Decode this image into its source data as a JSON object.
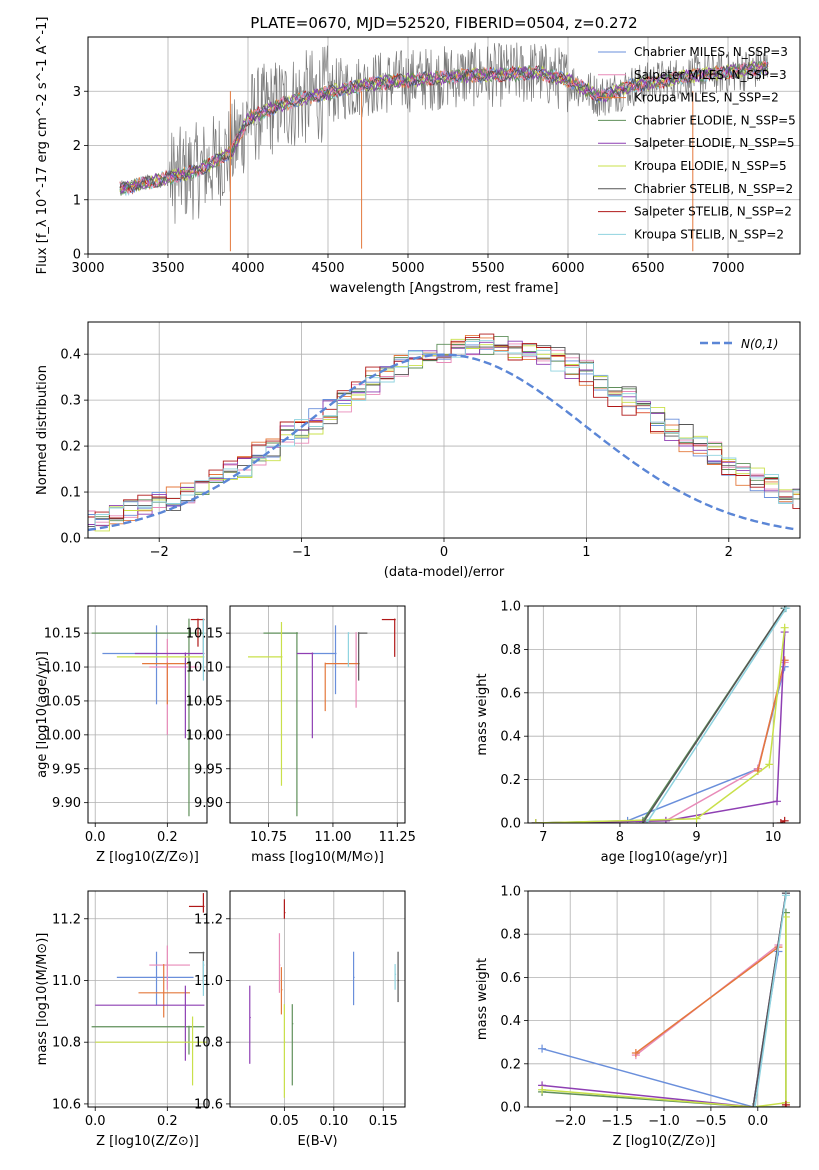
{
  "colors": {
    "series": [
      "#6a8fdb",
      "#e88ab8",
      "#e4783c",
      "#5f8f5a",
      "#8e3fb3",
      "#c9e04a",
      "#555555",
      "#b01818",
      "#8fd3df"
    ],
    "normal": "#5b86d6",
    "grid": "#b0b0b0"
  },
  "legend_entries": [
    "Chabrier MILES, N_SSP=3",
    "Salpeter MILES, N_SSP=3",
    "Kroupa MILES, N_SSP=2",
    "Chabrier ELODIE, N_SSP=5",
    "Salpeter ELODIE, N_SSP=5",
    "Kroupa ELODIE, N_SSP=5",
    "Chabrier STELIB, N_SSP=2",
    "Salpeter STELIB, N_SSP=2",
    "Kroupa STELIB, N_SSP=2"
  ],
  "chart_data": [
    {
      "id": "spectrum",
      "type": "line",
      "title": "PLATE=0670, MJD=52520, FIBERID=0504, z=0.272",
      "xlabel": "wavelength [Angstrom, rest frame]",
      "ylabel": "Flux [f_λ 10^-17 erg cm^-2 s^-1 A^-1]",
      "xlim": [
        3000,
        7450
      ],
      "ylim": [
        0,
        4
      ],
      "xticks": [
        3000,
        3500,
        4000,
        4500,
        5000,
        5500,
        6000,
        6500,
        7000
      ],
      "yticks": [
        0,
        1,
        2,
        3
      ],
      "legend": "top-right",
      "continuum": {
        "x": [
          3200,
          3500,
          3700,
          3900,
          4000,
          4200,
          4400,
          4600,
          4800,
          5000,
          5200,
          5400,
          5600,
          5800,
          6000,
          6200,
          6400,
          6600,
          6800,
          7000,
          7250
        ],
        "y": [
          1.2,
          1.4,
          1.55,
          1.9,
          2.5,
          2.75,
          2.9,
          3.05,
          3.15,
          3.2,
          3.25,
          3.3,
          3.3,
          3.35,
          3.2,
          2.9,
          3.1,
          3.2,
          3.3,
          3.35,
          3.45
        ]
      }
    },
    {
      "id": "residuals",
      "type": "histogram",
      "xlabel": "(data-model)/error",
      "ylabel": "Normed distribution",
      "xlim": [
        -2.5,
        2.5
      ],
      "ylim": [
        0,
        0.47
      ],
      "xticks": [
        -2,
        -1,
        0,
        1,
        2
      ],
      "yticks": [
        0.0,
        0.1,
        0.2,
        0.3,
        0.4
      ],
      "legend": "top-right",
      "normal_label": "N(0,1)",
      "bin_width": 0.1,
      "hist_center": 0.3,
      "hist_sigma": 1.2,
      "hist_peak": 0.41
    },
    {
      "id": "age-vs-Z",
      "type": "errorbar",
      "xlabel": "Z [log10(Z/Z⊙)]",
      "ylabel": "age [log10(age/yr)]",
      "xlim": [
        -0.02,
        0.31
      ],
      "ylim": [
        9.87,
        10.19
      ],
      "xticks": [
        0.0,
        0.2
      ],
      "yticks": [
        9.9,
        9.95,
        10.0,
        10.05,
        10.1,
        10.15
      ],
      "points": [
        {
          "x": 0.17,
          "y": 10.12,
          "xe": [
            0.15,
            0.0
          ],
          "ye": [
            0.075,
            0.04
          ]
        },
        {
          "x": 0.2,
          "y": 10.1,
          "xe": [
            0.05,
            0.08
          ],
          "ye": [
            0.1,
            0.04
          ]
        },
        {
          "x": 0.2,
          "y": 10.105,
          "xe": [
            0.07,
            0.06
          ],
          "ye": [
            0.06,
            0.0
          ]
        },
        {
          "x": 0.26,
          "y": 10.15,
          "xe": [
            0.27,
            0.04
          ],
          "ye": [
            0.27,
            0.02
          ]
        },
        {
          "x": 0.25,
          "y": 10.12,
          "xe": [
            0.14,
            0.05
          ],
          "ye": [
            0.125,
            0.0
          ]
        },
        {
          "x": 0.26,
          "y": 10.115,
          "xe": [
            0.2,
            0.04
          ],
          "ye": [
            0.0,
            0.0
          ]
        },
        {
          "x": 0.3,
          "y": 10.17,
          "xe": [
            0.0,
            0.0
          ],
          "ye": [
            0.05,
            0.0
          ]
        },
        {
          "x": 0.285,
          "y": 10.17,
          "xe": [
            0.02,
            0.015
          ],
          "ye": [
            0.04,
            0.0
          ]
        },
        {
          "x": 0.3,
          "y": 10.15,
          "xe": [
            0.0,
            0.0
          ],
          "ye": [
            0.07,
            0.02
          ]
        }
      ]
    },
    {
      "id": "age-vs-mass",
      "type": "errorbar",
      "xlabel": "mass [log10(M/M⊙)]",
      "ylabel": "",
      "xlim": [
        10.6,
        11.28
      ],
      "ylim": [
        9.87,
        10.19
      ],
      "xticks": [
        10.75,
        11.0,
        11.25
      ],
      "yticks": [
        9.9,
        9.95,
        10.0,
        10.05,
        10.1,
        10.15
      ],
      "points": [
        {
          "x": 11.01,
          "y": 10.12,
          "xe": [
            0.09,
            0.0
          ],
          "ye": [
            0.06,
            0.04
          ]
        },
        {
          "x": 11.09,
          "y": 10.1,
          "xe": [
            0.0,
            0.0
          ],
          "ye": [
            0.06,
            0.05
          ]
        },
        {
          "x": 10.97,
          "y": 10.105,
          "xe": [
            0.0,
            0.13
          ],
          "ye": [
            0.07,
            0.0
          ]
        },
        {
          "x": 10.86,
          "y": 10.15,
          "xe": [
            0.13,
            0.0
          ],
          "ye": [
            0.27,
            0.0
          ]
        },
        {
          "x": 10.92,
          "y": 10.12,
          "xe": [
            0.06,
            0.0
          ],
          "ye": [
            0.125,
            0.0
          ]
        },
        {
          "x": 10.8,
          "y": 10.115,
          "xe": [
            0.13,
            0.0
          ],
          "ye": [
            0.19,
            0.05
          ]
        },
        {
          "x": 11.1,
          "y": 10.15,
          "xe": [
            0.0,
            0.03
          ],
          "ye": [
            0.07,
            0.0
          ]
        },
        {
          "x": 11.24,
          "y": 10.17,
          "xe": [
            0.05,
            0.0
          ],
          "ye": [
            0.055,
            0.0
          ]
        },
        {
          "x": 11.06,
          "y": 10.15,
          "xe": [
            0.0,
            0.0
          ],
          "ye": [
            0.05,
            0.0
          ]
        }
      ]
    },
    {
      "id": "massweight-vs-age",
      "type": "line",
      "xlabel": "age [log10(age/yr)]",
      "ylabel": "mass weight",
      "xlim": [
        6.8,
        10.35
      ],
      "ylim": [
        0,
        1
      ],
      "xticks": [
        7,
        8,
        9,
        10
      ],
      "yticks": [
        0.0,
        0.2,
        0.4,
        0.6,
        0.8,
        1.0
      ],
      "series": [
        {
          "x": [
            6.9,
            8.1,
            9.8,
            10.15
          ],
          "y": [
            0.0,
            0.01,
            0.25,
            0.72
          ]
        },
        {
          "x": [
            6.9,
            8.6,
            9.8,
            10.15
          ],
          "y": [
            0.0,
            0.01,
            0.25,
            0.74
          ]
        },
        {
          "x": [
            9.8,
            10.15
          ],
          "y": [
            0.24,
            0.75
          ]
        },
        {
          "x": [
            6.9,
            8.3,
            10.15
          ],
          "y": [
            0.0,
            0.01,
            0.99
          ]
        },
        {
          "x": [
            6.9,
            8.6,
            10.05,
            10.15
          ],
          "y": [
            0.0,
            0.01,
            0.1,
            0.88
          ]
        },
        {
          "x": [
            6.9,
            9.0,
            9.95,
            10.15
          ],
          "y": [
            0.0,
            0.02,
            0.27,
            0.9
          ]
        },
        {
          "x": [
            8.3,
            10.15
          ],
          "y": [
            0.0,
            0.99
          ]
        },
        {
          "x": [
            10.1,
            10.15
          ],
          "y": [
            0.0,
            0.01
          ]
        },
        {
          "x": [
            8.35,
            10.17
          ],
          "y": [
            0.0,
            0.99
          ]
        }
      ]
    },
    {
      "id": "mass-vs-Z",
      "type": "errorbar",
      "xlabel": "Z [log10(Z/Z⊙)]",
      "ylabel": "mass [log10(M/M⊙)]",
      "xlim": [
        -0.02,
        0.31
      ],
      "ylim": [
        10.59,
        11.29
      ],
      "xticks": [
        0.0,
        0.2
      ],
      "yticks": [
        10.6,
        10.8,
        11.0,
        11.2
      ],
      "points": [
        {
          "x": 0.17,
          "y": 11.01,
          "xe": [
            0.11,
            0.1
          ],
          "ye": [
            0.09,
            0.08
          ]
        },
        {
          "x": 0.2,
          "y": 11.05,
          "xe": [
            0.05,
            0.06
          ],
          "ye": [
            0.08,
            0.06
          ]
        },
        {
          "x": 0.19,
          "y": 10.96,
          "xe": [
            0.07,
            0.07
          ],
          "ye": [
            0.08,
            0.09
          ]
        },
        {
          "x": 0.26,
          "y": 10.85,
          "xe": [
            0.27,
            0.04
          ],
          "ye": [
            0.09,
            0.0
          ]
        },
        {
          "x": 0.25,
          "y": 10.92,
          "xe": [
            0.25,
            0.05
          ],
          "ye": [
            0.18,
            0.06
          ]
        },
        {
          "x": 0.27,
          "y": 10.8,
          "xe": [
            0.27,
            0.04
          ],
          "ye": [
            0.14,
            0.08
          ]
        },
        {
          "x": 0.3,
          "y": 11.09,
          "xe": [
            0.04,
            0.0
          ],
          "ye": [
            0.1,
            0.0
          ]
        },
        {
          "x": 0.3,
          "y": 11.24,
          "xe": [
            0.04,
            0.0
          ],
          "ye": [
            0.02,
            0.04
          ]
        },
        {
          "x": 0.3,
          "y": 11.05,
          "xe": [
            0.0,
            0.0
          ],
          "ye": [
            0.1,
            0.01
          ]
        }
      ]
    },
    {
      "id": "mass-vs-EBV",
      "type": "errorbar",
      "xlabel": "E(B-V)",
      "ylabel": "",
      "xlim": [
        -0.005,
        0.172
      ],
      "ylim": [
        10.59,
        11.29
      ],
      "xticks": [
        0.05,
        0.1,
        0.15
      ],
      "yticks": [
        10.6,
        10.8,
        11.0,
        11.2
      ],
      "points": [
        {
          "x": 0.12,
          "y": 11.01,
          "xe": [
            0.0,
            0.0
          ],
          "ye": [
            0.09,
            0.08
          ]
        },
        {
          "x": 0.045,
          "y": 11.05,
          "xe": [
            0.0,
            0.0
          ],
          "ye": [
            0.09,
            0.1
          ]
        },
        {
          "x": 0.047,
          "y": 10.97,
          "xe": [
            0.0,
            0.0
          ],
          "ye": [
            0.08,
            0.07
          ]
        },
        {
          "x": 0.058,
          "y": 10.86,
          "xe": [
            0.0,
            0.0
          ],
          "ye": [
            0.2,
            0.06
          ]
        },
        {
          "x": 0.015,
          "y": 10.88,
          "xe": [
            0.0,
            0.0
          ],
          "ye": [
            0.15,
            0.1
          ]
        },
        {
          "x": 0.05,
          "y": 10.8,
          "xe": [
            0.0,
            0.0
          ],
          "ye": [
            0.18,
            0.12
          ]
        },
        {
          "x": 0.165,
          "y": 11.0,
          "xe": [
            0.0,
            0.0
          ],
          "ye": [
            0.07,
            0.09
          ]
        },
        {
          "x": 0.05,
          "y": 11.22,
          "xe": [
            0.0,
            0.0
          ],
          "ye": [
            0.02,
            0.04
          ]
        },
        {
          "x": 0.162,
          "y": 11.02,
          "xe": [
            0.0,
            0.0
          ],
          "ye": [
            0.05,
            0.03
          ]
        }
      ]
    },
    {
      "id": "massweight-vs-Z",
      "type": "line",
      "xlabel": "Z [log10(Z/Z⊙)]",
      "ylabel": "mass weight",
      "xlim": [
        -2.45,
        0.45
      ],
      "ylim": [
        0,
        1
      ],
      "xticks": [
        -2.0,
        -1.5,
        -1.0,
        -0.5,
        0.0
      ],
      "yticks": [
        0.0,
        0.2,
        0.4,
        0.6,
        0.8,
        1.0
      ],
      "series": [
        {
          "x": [
            -2.3,
            -0.05,
            0.22
          ],
          "y": [
            0.27,
            0.0,
            0.72
          ]
        },
        {
          "x": [
            -1.3,
            0.22
          ],
          "y": [
            0.24,
            0.75
          ]
        },
        {
          "x": [
            -1.3,
            0.22
          ],
          "y": [
            0.25,
            0.74
          ]
        },
        {
          "x": [
            -2.3,
            -0.05,
            0.3,
            0.3
          ],
          "y": [
            0.07,
            0.0,
            0.0,
            0.9
          ]
        },
        {
          "x": [
            -2.3,
            -0.05,
            0.3
          ],
          "y": [
            0.1,
            0.0,
            0.99
          ]
        },
        {
          "x": [
            -2.3,
            -0.05,
            0.3,
            0.3
          ],
          "y": [
            0.08,
            0.0,
            0.02,
            0.88
          ]
        },
        {
          "x": [
            -0.05,
            0.3
          ],
          "y": [
            0.0,
            0.99
          ]
        },
        {
          "x": [
            0.3,
            0.3
          ],
          "y": [
            0.0,
            0.01
          ]
        },
        {
          "x": [
            -0.03,
            0.3
          ],
          "y": [
            0.0,
            0.98
          ]
        }
      ]
    }
  ]
}
